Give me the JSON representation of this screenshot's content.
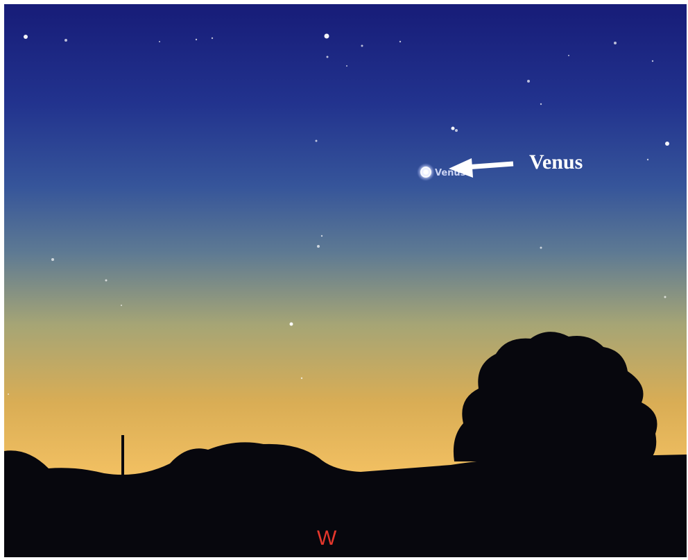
{
  "annotation": {
    "label": "Venus"
  },
  "planet": {
    "label": "Venus"
  },
  "compass": {
    "direction": "W"
  }
}
